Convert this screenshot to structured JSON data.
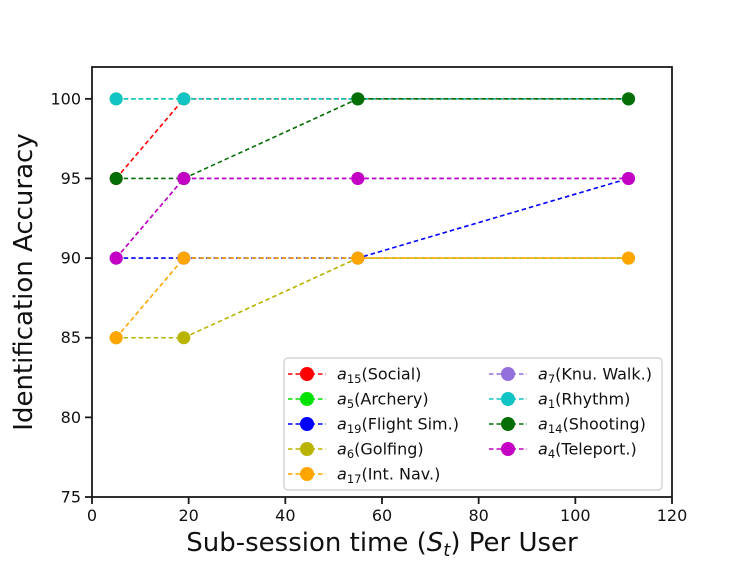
{
  "chart_data": {
    "type": "line",
    "title": "",
    "xlabel": "Sub-session time (S_t) Per User",
    "xlabel_parts": {
      "prefix": "Sub-session time (",
      "var": "S",
      "sub": "t",
      "suffix": ") Per User"
    },
    "ylabel": "Identification Accuracy",
    "xlim": [
      0,
      120
    ],
    "ylim": [
      75,
      102
    ],
    "xticks": [
      "0",
      "20",
      "40",
      "60",
      "80",
      "100",
      "120"
    ],
    "xtick_values": [
      0,
      20,
      40,
      60,
      80,
      100,
      120
    ],
    "yticks": [
      "75",
      "80",
      "85",
      "90",
      "95",
      "100"
    ],
    "ytick_values": [
      75,
      80,
      85,
      90,
      95,
      100
    ],
    "grid": false,
    "line_style": "dashed",
    "marker": "circle",
    "legend_position": "lower center inside plot, two columns",
    "x": [
      5,
      19,
      55,
      111
    ],
    "series": [
      {
        "id": "a15",
        "label_var": "a",
        "label_sub": "15",
        "label_desc": "(Social)",
        "color": "#ff0000",
        "values": [
          95,
          100,
          100,
          100
        ]
      },
      {
        "id": "a5",
        "label_var": "a",
        "label_sub": "5",
        "label_desc": "(Archery)",
        "color": "#00e100",
        "values": [
          100,
          100,
          100,
          100
        ]
      },
      {
        "id": "a19",
        "label_var": "a",
        "label_sub": "19",
        "label_desc": "(Flight Sim.)",
        "color": "#0000ff",
        "values": [
          90,
          90,
          90,
          95
        ]
      },
      {
        "id": "a6",
        "label_var": "a",
        "label_sub": "6",
        "label_desc": "(Golfing)",
        "color": "#b8b400",
        "values": [
          85,
          85,
          90,
          90
        ]
      },
      {
        "id": "a17",
        "label_var": "a",
        "label_sub": "17",
        "label_desc": "(Int. Nav.)",
        "color": "#ffa500",
        "values": [
          85,
          90,
          90,
          90
        ]
      },
      {
        "id": "a7",
        "label_var": "a",
        "label_sub": "7",
        "label_desc": "(Knu. Walk.)",
        "color": "#9370db",
        "values": [
          90,
          95,
          95,
          95
        ]
      },
      {
        "id": "a1",
        "label_var": "a",
        "label_sub": "1",
        "label_desc": "(Rhythm)",
        "color": "#12c4c4",
        "values": [
          100,
          100,
          100,
          100
        ]
      },
      {
        "id": "a14",
        "label_var": "a",
        "label_sub": "14",
        "label_desc": "(Shooting)",
        "color": "#066e06",
        "values": [
          95,
          95,
          100,
          100
        ]
      },
      {
        "id": "a4",
        "label_var": "a",
        "label_sub": "4",
        "label_desc": "(Teleport.)",
        "color": "#c400c4",
        "values": [
          90,
          95,
          95,
          95
        ]
      }
    ],
    "colors": {
      "axis": "#1a1a1a",
      "legend_border": "#cccccc",
      "background": "#ffffff"
    }
  }
}
